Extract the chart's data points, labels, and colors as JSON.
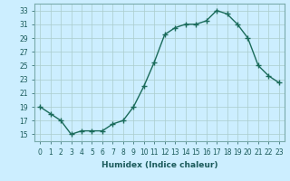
{
  "x": [
    0,
    1,
    2,
    3,
    4,
    5,
    6,
    7,
    8,
    9,
    10,
    11,
    12,
    13,
    14,
    15,
    16,
    17,
    18,
    19,
    20,
    21,
    22,
    23
  ],
  "y": [
    19,
    18,
    17,
    15,
    15.5,
    15.5,
    15.5,
    16.5,
    17,
    19,
    22,
    25.5,
    29.5,
    30.5,
    31,
    31,
    31.5,
    33,
    32.5,
    31,
    29,
    25,
    23.5,
    22.5
  ],
  "line_color": "#1a6b5a",
  "marker_color": "#1a6b5a",
  "bg_color": "#cceeff",
  "grid_color": "#aacccc",
  "xlabel": "Humidex (Indice chaleur)",
  "xlim": [
    -0.5,
    23.5
  ],
  "ylim": [
    14,
    34
  ],
  "yticks": [
    15,
    17,
    19,
    21,
    23,
    25,
    27,
    29,
    31,
    33
  ],
  "xticks": [
    0,
    1,
    2,
    3,
    4,
    5,
    6,
    7,
    8,
    9,
    10,
    11,
    12,
    13,
    14,
    15,
    16,
    17,
    18,
    19,
    20,
    21,
    22,
    23
  ],
  "xtick_labels": [
    "0",
    "1",
    "2",
    "3",
    "4",
    "5",
    "6",
    "7",
    "8",
    "9",
    "10",
    "11",
    "12",
    "13",
    "14",
    "15",
    "16",
    "17",
    "18",
    "19",
    "20",
    "21",
    "22",
    "23"
  ],
  "marker_size": 4,
  "line_width": 1.0
}
